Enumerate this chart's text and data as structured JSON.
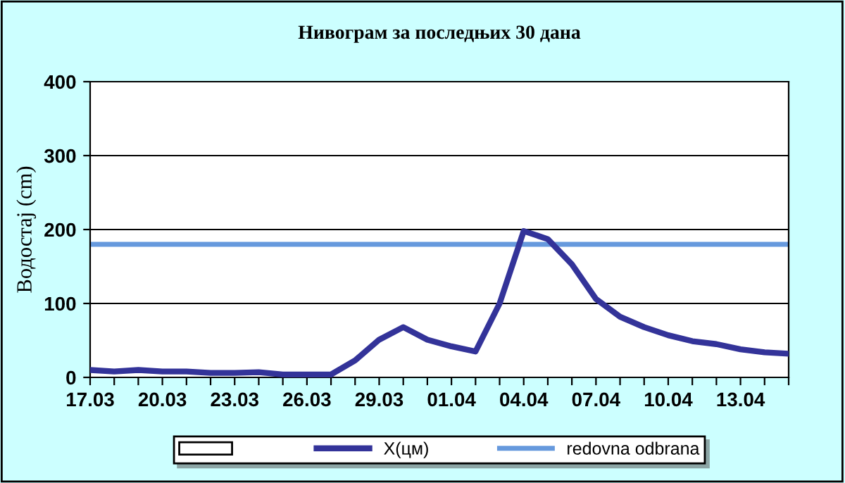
{
  "chart_data": {
    "type": "line",
    "title": "Нивограм за последњих 30 дана",
    "ylabel": "Водостај (cm)",
    "categories": [
      "17.03",
      null,
      null,
      "20.03",
      null,
      null,
      "23.03",
      null,
      null,
      "26.03",
      null,
      null,
      "29.03",
      null,
      null,
      "01.04",
      null,
      null,
      "04.04",
      null,
      null,
      "07.04",
      null,
      null,
      "10.04",
      null,
      null,
      "13.04",
      null,
      null
    ],
    "series": [
      {
        "name": "X(цм)",
        "color": "#333399",
        "values": [
          10,
          8,
          10,
          8,
          8,
          6,
          6,
          7,
          4,
          4,
          4,
          23,
          51,
          68,
          51,
          42,
          35,
          100,
          198,
          187,
          153,
          106,
          82,
          68,
          57,
          49,
          45,
          38,
          34,
          32
        ]
      }
    ],
    "ref_lines": [
      {
        "axis": "y",
        "value": 180,
        "label": "redovna odbrana",
        "color": "#6699dd"
      }
    ],
    "ylim": [
      0,
      400
    ],
    "yticks": [
      0,
      100,
      200,
      300,
      400
    ],
    "grid": "y",
    "legend": "bottom",
    "marker": "none",
    "line_style": "solid"
  }
}
